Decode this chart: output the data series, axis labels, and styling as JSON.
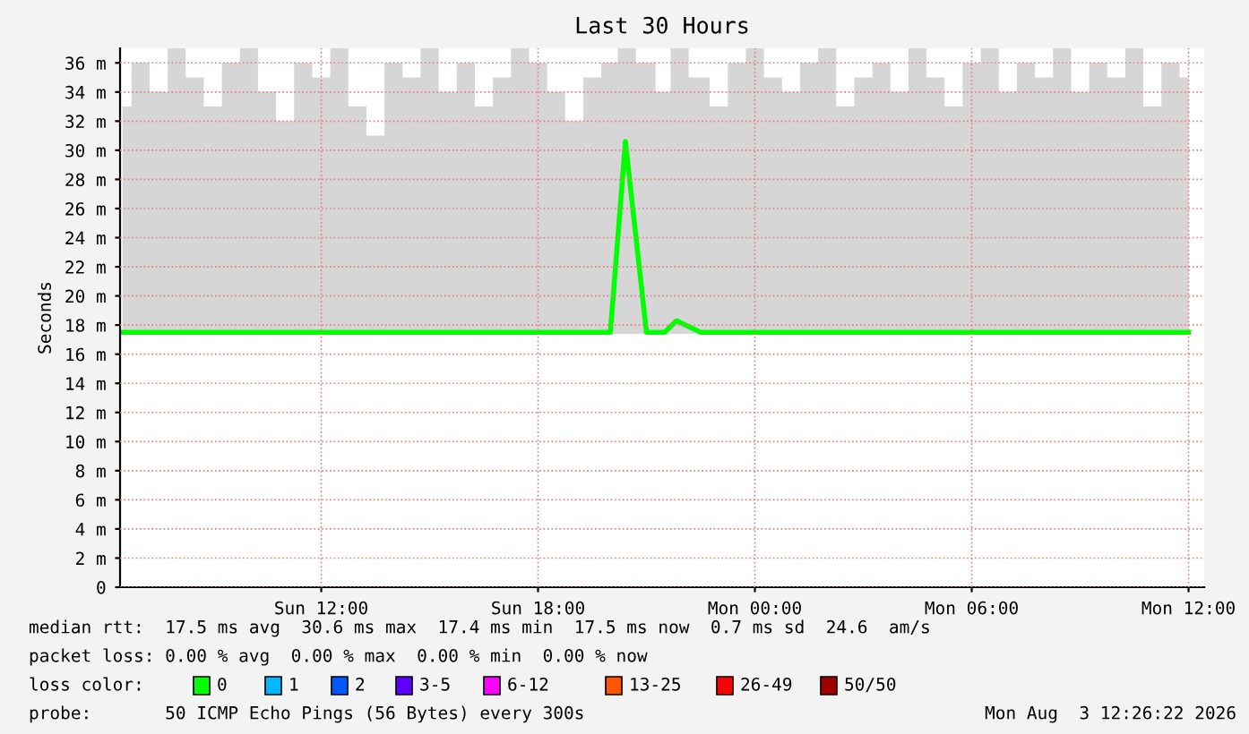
{
  "chart_data": {
    "type": "line",
    "title": "Last 30 Hours",
    "ylabel": "Seconds",
    "x": [
      "2026-08-02T06:30",
      "2026-08-02T07:00",
      "2026-08-02T07:30",
      "2026-08-02T08:00",
      "2026-08-02T08:30",
      "2026-08-02T09:00",
      "2026-08-02T09:30",
      "2026-08-02T10:00",
      "2026-08-02T10:30",
      "2026-08-02T11:00",
      "2026-08-02T11:30",
      "2026-08-02T12:00",
      "2026-08-02T12:30",
      "2026-08-02T13:00",
      "2026-08-02T13:30",
      "2026-08-02T14:00",
      "2026-08-02T14:30",
      "2026-08-02T15:00",
      "2026-08-02T15:30",
      "2026-08-02T16:00",
      "2026-08-02T16:30",
      "2026-08-02T17:00",
      "2026-08-02T17:30",
      "2026-08-02T18:00",
      "2026-08-02T18:30",
      "2026-08-02T19:00",
      "2026-08-02T19:30",
      "2026-08-02T20:00",
      "2026-08-02T20:25",
      "2026-08-02T21:00",
      "2026-08-02T21:30",
      "2026-08-02T21:50",
      "2026-08-02T22:30",
      "2026-08-02T23:00",
      "2026-08-02T23:30",
      "2026-08-03T00:00",
      "2026-08-03T00:30",
      "2026-08-03T01:00",
      "2026-08-03T01:30",
      "2026-08-03T02:00",
      "2026-08-03T02:30",
      "2026-08-03T03:00",
      "2026-08-03T03:30",
      "2026-08-03T04:00",
      "2026-08-03T04:30",
      "2026-08-03T05:00",
      "2026-08-03T05:30",
      "2026-08-03T06:00",
      "2026-08-03T06:30",
      "2026-08-03T07:00",
      "2026-08-03T07:30",
      "2026-08-03T08:00",
      "2026-08-03T08:30",
      "2026-08-03T09:00",
      "2026-08-03T09:30",
      "2026-08-03T10:00",
      "2026-08-03T10:30",
      "2026-08-03T11:00",
      "2026-08-03T11:30",
      "2026-08-03T12:00"
    ],
    "series": [
      {
        "color": "#00ff00",
        "values": [
          17.5,
          17.5,
          17.5,
          17.5,
          17.5,
          17.5,
          17.5,
          17.5,
          17.5,
          17.5,
          17.5,
          17.5,
          17.5,
          17.5,
          17.5,
          17.5,
          17.5,
          17.5,
          17.5,
          17.5,
          17.5,
          17.5,
          17.5,
          17.5,
          17.5,
          17.5,
          17.5,
          17.5,
          30.6,
          17.5,
          17.5,
          18.3,
          17.5,
          17.5,
          17.5,
          17.5,
          17.5,
          17.5,
          17.5,
          17.5,
          17.5,
          17.5,
          17.5,
          17.5,
          17.5,
          17.5,
          17.5,
          17.5,
          17.5,
          17.5,
          17.5,
          17.5,
          17.5,
          17.5,
          17.5,
          17.5,
          17.5,
          17.5,
          17.5,
          17.5
        ],
        "lower": [
          17.4,
          17.4,
          17.4,
          17.4,
          17.4,
          17.4,
          17.4,
          17.4,
          17.4,
          17.4,
          17.4,
          17.4,
          17.4,
          17.4,
          17.4,
          17.4,
          17.4,
          17.4,
          17.4,
          17.4,
          17.4,
          17.4,
          17.4,
          17.4,
          17.4,
          17.4,
          17.4,
          17.4,
          17.4,
          17.4,
          17.4,
          17.4,
          17.4,
          17.4,
          17.4,
          17.4,
          17.4,
          17.4,
          17.4,
          17.4,
          17.4,
          17.4,
          17.4,
          17.4,
          17.4,
          17.4,
          17.4,
          17.4,
          17.4,
          17.4,
          17.4,
          17.4,
          17.4,
          17.4,
          17.4,
          17.4,
          17.4,
          17.4,
          17.4,
          17.4
        ],
        "upper": [
          33,
          36,
          34,
          37,
          35,
          33,
          36,
          37,
          34,
          32,
          36,
          35,
          37,
          33,
          31,
          36,
          35,
          37,
          34,
          36,
          33,
          35,
          37,
          36,
          34,
          32,
          35,
          36,
          37,
          36,
          34,
          37,
          35,
          33,
          36,
          37,
          35,
          34,
          36,
          37,
          33,
          35,
          36,
          34,
          37,
          35,
          33,
          36,
          37,
          34,
          36,
          35,
          37,
          34,
          36,
          35,
          37,
          33,
          36,
          35
        ]
      }
    ],
    "xlim": [
      "2026-08-02T06:26",
      "2026-08-03T12:26"
    ],
    "xticks": [
      {
        "value": "2026-08-02T12:00",
        "label": "Sun 12:00"
      },
      {
        "value": "2026-08-02T18:00",
        "label": "Sun 18:00"
      },
      {
        "value": "2026-08-03T00:00",
        "label": "Mon 00:00"
      },
      {
        "value": "2026-08-03T06:00",
        "label": "Mon 06:00"
      },
      {
        "value": "2026-08-03T12:00",
        "label": "Mon 12:00"
      }
    ],
    "ylim": [
      0,
      37
    ],
    "yticks": [
      0,
      {
        "value": 2,
        "label": "2 m"
      },
      {
        "value": 4,
        "label": "4 m"
      },
      {
        "value": 6,
        "label": "6 m"
      },
      {
        "value": 8,
        "label": "8 m"
      },
      {
        "value": 10,
        "label": "10 m"
      },
      {
        "value": 12,
        "label": "12 m"
      },
      {
        "value": 14,
        "label": "14 m"
      },
      {
        "value": 16,
        "label": "16 m"
      },
      {
        "value": 18,
        "label": "18 m"
      },
      {
        "value": 20,
        "label": "20 m"
      },
      {
        "value": 22,
        "label": "22 m"
      },
      {
        "value": 24,
        "label": "24 m"
      },
      {
        "value": 26,
        "label": "26 m"
      },
      {
        "value": 28,
        "label": "28 m"
      },
      {
        "value": 30,
        "label": "30 m"
      },
      {
        "value": 32,
        "label": "32 m"
      },
      {
        "value": 34,
        "label": "34 m"
      },
      {
        "value": 36,
        "label": "36 m"
      }
    ],
    "grid": true,
    "annotations": [
      "median rtt:  17.5 ms avg  30.6 ms max  17.4 ms min  17.5 ms now  0.7 ms sd  24.6  am/s",
      "packet loss: 0.00 % avg  0.00 % max  0.00 % min  0.00 % now",
      "loss color:",
      "0",
      "1",
      "2",
      "3-5",
      "6-12",
      "13-25",
      "26-49",
      "50/50",
      "probe:       50 ICMP Echo Pings (56 Bytes) every 300s",
      "Mon Aug  3 12:26:22 2026"
    ]
  }
}
